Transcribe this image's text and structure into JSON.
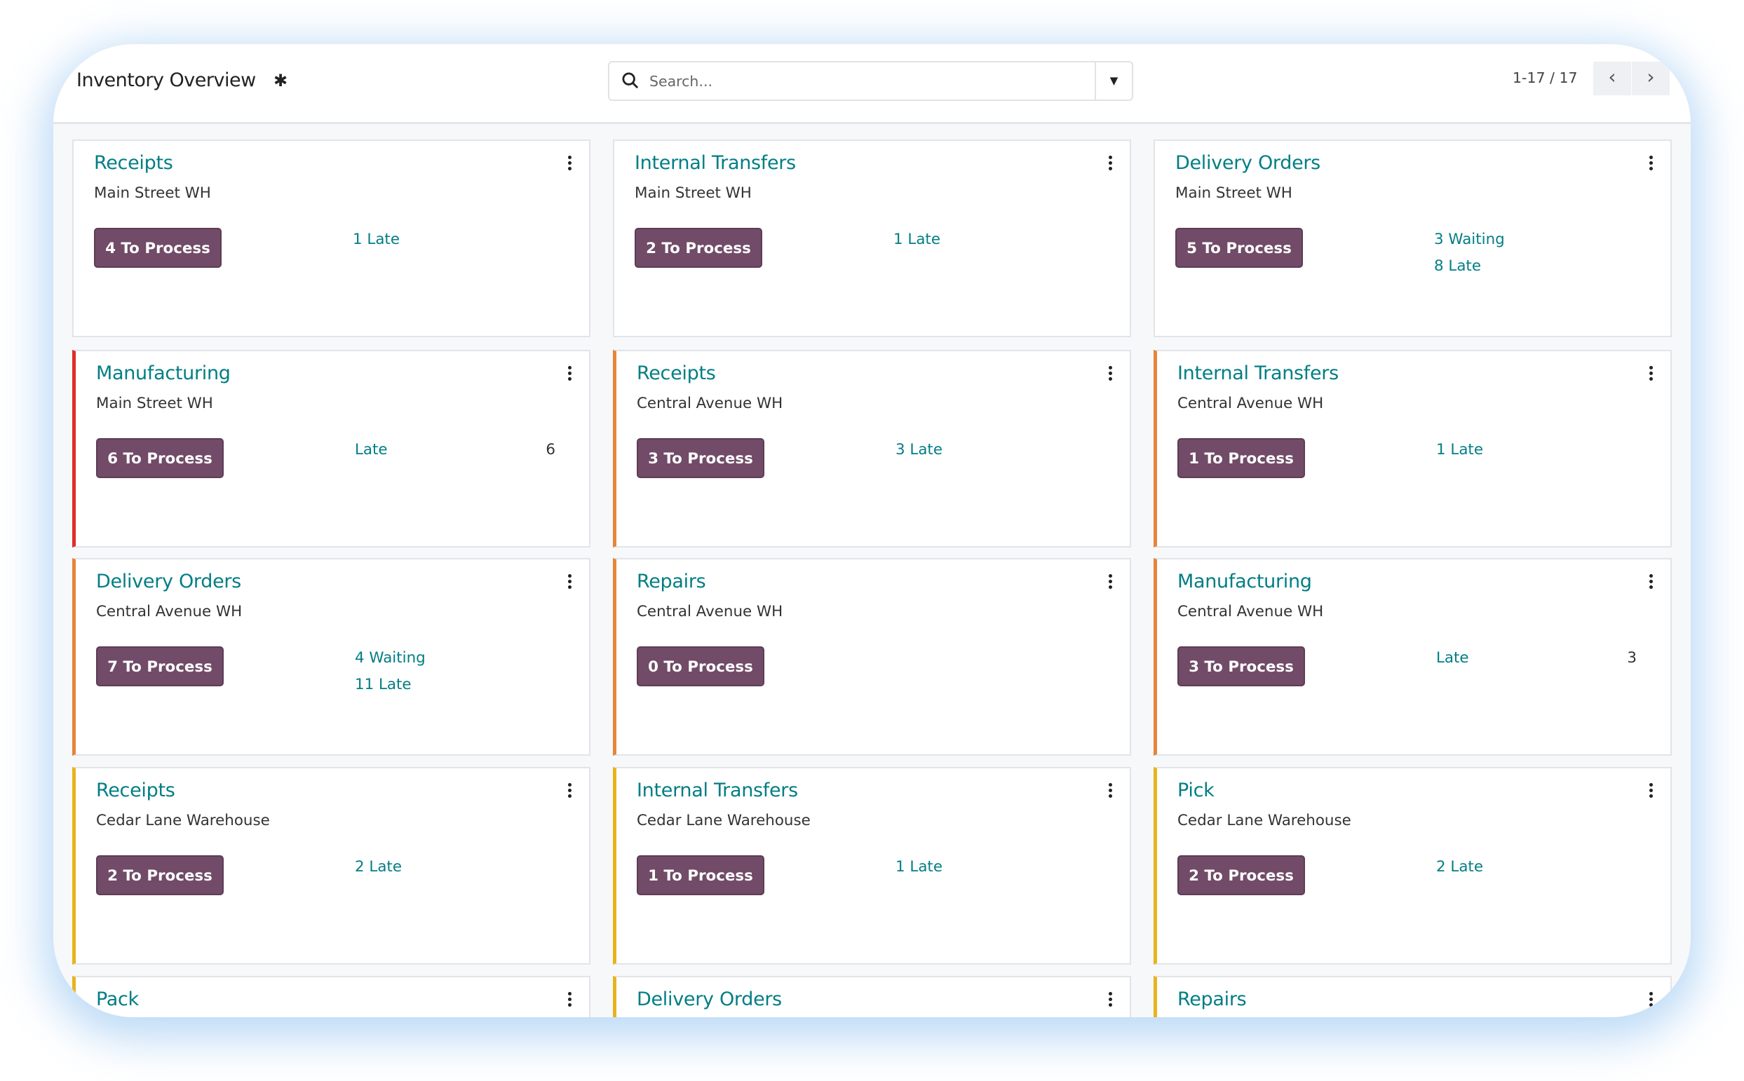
{
  "header": {
    "title": "Inventory Overview",
    "settings_icon": "gear-icon",
    "search_placeholder": "Search...",
    "pager": "1-17 / 17",
    "prev_label": "‹",
    "next_label": "›"
  },
  "colors": {
    "accent": "#017e84",
    "button": "#714b67",
    "red": "#e02b2b",
    "orange": "#e8833a",
    "yellow": "#e8b41c"
  },
  "cards": [
    {
      "title": "Receipts",
      "warehouse": "Main Street WH",
      "button": "4 To Process",
      "stats": [
        "1 Late"
      ],
      "bar": ""
    },
    {
      "title": "Internal Transfers",
      "warehouse": "Main Street WH",
      "button": "2 To Process",
      "stats": [
        "1 Late"
      ],
      "bar": ""
    },
    {
      "title": "Delivery Orders",
      "warehouse": "Main Street WH",
      "button": "5 To Process",
      "stats": [
        "3 Waiting",
        "8 Late"
      ],
      "bar": ""
    },
    {
      "title": "Manufacturing",
      "warehouse": "Main Street WH",
      "button": "6 To Process",
      "stats": [
        "Late"
      ],
      "count": "6",
      "bar": "red"
    },
    {
      "title": "Receipts",
      "warehouse": "Central Avenue WH",
      "button": "3 To Process",
      "stats": [
        "3 Late"
      ],
      "bar": "orange"
    },
    {
      "title": "Internal Transfers",
      "warehouse": "Central Avenue WH",
      "button": "1 To Process",
      "stats": [
        "1 Late"
      ],
      "bar": "orange"
    },
    {
      "title": "Delivery Orders",
      "warehouse": "Central Avenue WH",
      "button": "7 To Process",
      "stats": [
        "4 Waiting",
        "11 Late"
      ],
      "bar": "orange"
    },
    {
      "title": "Repairs",
      "warehouse": "Central Avenue WH",
      "button": "0 To Process",
      "stats": [],
      "bar": "orange"
    },
    {
      "title": "Manufacturing",
      "warehouse": "Central Avenue WH",
      "button": "3 To Process",
      "stats": [
        "Late"
      ],
      "count": "3",
      "bar": "orange"
    },
    {
      "title": "Receipts",
      "warehouse": "Cedar Lane Warehouse",
      "button": "2 To Process",
      "stats": [
        "2 Late"
      ],
      "bar": "yellow"
    },
    {
      "title": "Internal Transfers",
      "warehouse": "Cedar Lane Warehouse",
      "button": "1 To Process",
      "stats": [
        "1 Late"
      ],
      "bar": "yellow"
    },
    {
      "title": "Pick",
      "warehouse": "Cedar Lane Warehouse",
      "button": "2 To Process",
      "stats": [
        "2 Late"
      ],
      "bar": "yellow"
    },
    {
      "title": "Pack",
      "bar": "yellow"
    },
    {
      "title": "Delivery Orders",
      "bar": "yellow"
    },
    {
      "title": "Repairs",
      "bar": "yellow"
    }
  ]
}
